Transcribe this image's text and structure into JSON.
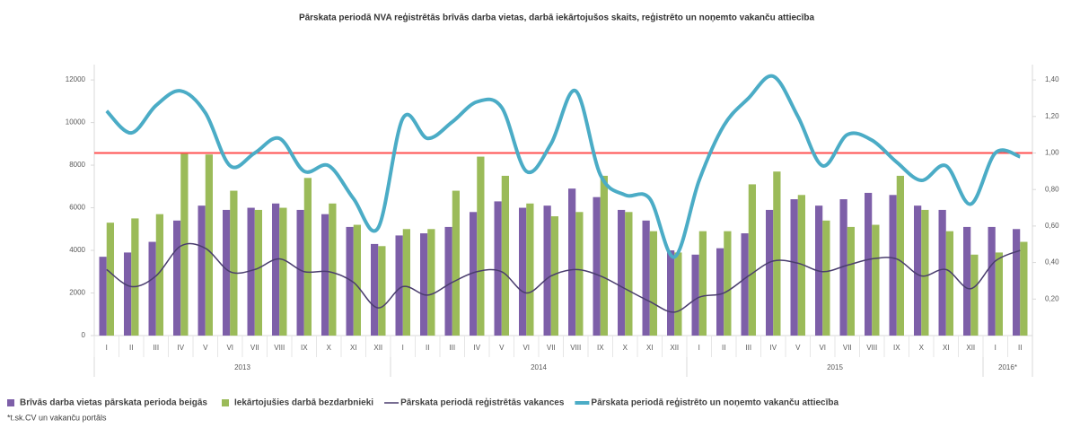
{
  "chart_data": {
    "type": "bar",
    "title": "Pārskata periodā NVA reģistrētās brīvās darba vietas, darbā iekārtojušos skaits, reģistrēto un noņemto vakanču attiecība",
    "groups": [
      {
        "label": "2013",
        "categories": [
          "I",
          "II",
          "III",
          "IV",
          "V",
          "VI",
          "VII",
          "VIII",
          "IX",
          "X",
          "XI",
          "XII"
        ]
      },
      {
        "label": "2014",
        "categories": [
          "I",
          "II",
          "III",
          "IV",
          "V",
          "VI",
          "VII",
          "VIII",
          "IX",
          "X",
          "XI",
          "XII"
        ]
      },
      {
        "label": "2015",
        "categories": [
          "I",
          "II",
          "III",
          "IV",
          "V",
          "VI",
          "VII",
          "VIII",
          "IX",
          "X",
          "XI",
          "XII"
        ]
      },
      {
        "label": "2016*",
        "categories": [
          "I",
          "II"
        ]
      }
    ],
    "series": [
      {
        "name": "Brīvās darba vietas pārskata perioda beigās",
        "type": "bar",
        "color": "#7d5fa8",
        "values": [
          3700,
          3900,
          4400,
          5400,
          6100,
          5900,
          6000,
          6200,
          5900,
          5700,
          5100,
          4300,
          4700,
          4800,
          5100,
          5800,
          6300,
          6000,
          6100,
          6900,
          6500,
          5900,
          5400,
          4000,
          3800,
          4100,
          4800,
          5900,
          6400,
          6100,
          6400,
          6700,
          6600,
          6100,
          5900,
          5100,
          5100,
          5000
        ]
      },
      {
        "name": "Iekārtojušies darbā bezdarbnieki",
        "type": "bar",
        "color": "#9bbb59",
        "values": [
          5300,
          5500,
          5700,
          8600,
          8500,
          6800,
          5900,
          6000,
          7400,
          6200,
          5200,
          4200,
          5000,
          5000,
          6800,
          8400,
          7500,
          6200,
          5600,
          5800,
          7500,
          5800,
          4900,
          3900,
          4900,
          4900,
          7100,
          7700,
          6600,
          5400,
          5100,
          5200,
          7500,
          5900,
          4900,
          3800,
          3900,
          4400
        ]
      },
      {
        "name": "Pārskata periodā reģistrētās vakances",
        "type": "line",
        "color": "#4a3d6e",
        "width": 1.5,
        "values": [
          3100,
          2300,
          2800,
          4200,
          4100,
          3000,
          3100,
          3600,
          3000,
          3000,
          2500,
          1300,
          2300,
          1900,
          2500,
          3000,
          3000,
          2000,
          2800,
          3100,
          2800,
          2200,
          1600,
          1100,
          1800,
          2000,
          2800,
          3500,
          3400,
          3000,
          3300,
          3600,
          3600,
          2800,
          3100,
          2200,
          3500,
          4000
        ]
      },
      {
        "name": "Pārskata periodā reģistrēto un noņemto vakanču attiecība",
        "type": "line",
        "axis": "y2",
        "color": "#4bacc6",
        "width": 4,
        "values": [
          1.23,
          1.11,
          1.26,
          1.34,
          1.22,
          0.93,
          1.0,
          1.08,
          0.9,
          0.93,
          0.75,
          0.59,
          1.19,
          1.08,
          1.17,
          1.28,
          1.25,
          0.9,
          1.05,
          1.34,
          0.88,
          0.77,
          0.75,
          0.43,
          0.85,
          1.15,
          1.3,
          1.42,
          1.2,
          0.93,
          1.1,
          1.07,
          0.95,
          0.85,
          0.93,
          0.72,
          1.0,
          0.98
        ]
      }
    ],
    "reference_line": {
      "value": 1.0,
      "axis": "y2",
      "color": "#ff5050"
    },
    "ylim": [
      0,
      12720
    ],
    "yticks": [
      0,
      2000,
      4000,
      6000,
      8000,
      10000,
      12000
    ],
    "y2lim": [
      0,
      1.484
    ],
    "y2ticks": [
      {
        "value": 0.2,
        "label": "0,20"
      },
      {
        "value": 0.4,
        "label": "0,40"
      },
      {
        "value": 0.6,
        "label": "0,60"
      },
      {
        "value": 0.8,
        "label": "0,80"
      },
      {
        "value": 1.0,
        "label": "1,00"
      },
      {
        "value": 1.2,
        "label": "1,20"
      },
      {
        "value": 1.4,
        "label": "1,40"
      }
    ],
    "grid": false,
    "legend": "bottom",
    "footnote": "*t.sk.CV un vakanču portāls"
  }
}
